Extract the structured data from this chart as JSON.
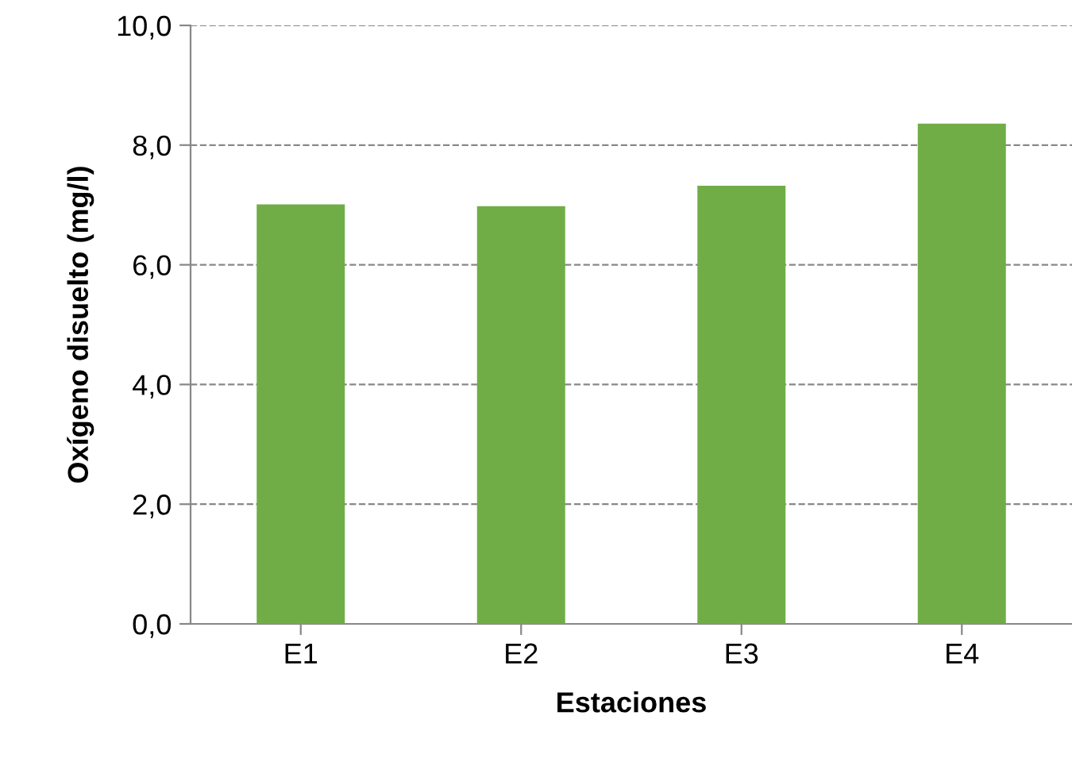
{
  "chart_data": {
    "type": "bar",
    "xlabel": "Estaciones",
    "ylabel": "Oxígeno disuelto (mg/l)",
    "categories": [
      "E1",
      "E2",
      "E3",
      "E4"
    ],
    "values": [
      7.01,
      6.98,
      7.32,
      8.36
    ],
    "color": "#70ad47",
    "ylim": [
      0,
      10
    ],
    "yticks": [
      {
        "value": 0,
        "label": "0,0"
      },
      {
        "value": 2,
        "label": "2,0"
      },
      {
        "value": 4,
        "label": "4,0"
      },
      {
        "value": 6,
        "label": "6,0"
      },
      {
        "value": 8,
        "label": "8,0"
      },
      {
        "value": 10,
        "label": "10,0"
      }
    ],
    "grid": "y"
  }
}
